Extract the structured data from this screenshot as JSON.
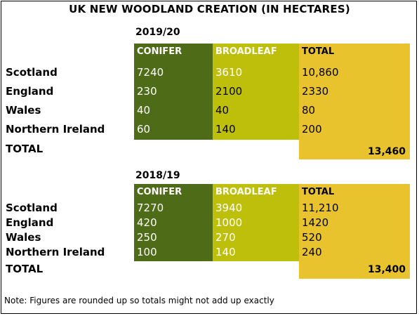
{
  "title": "UK NEW WOODLAND CREATION (IN HECTARES)",
  "colors": {
    "conifer": "#4e6b17",
    "broadleaf": "#bdbf0a",
    "total": "#e9c32e"
  },
  "columns": {
    "conifer": "CONIFER",
    "broadleaf": "BROADLEAF",
    "total": "TOTAL"
  },
  "tables": [
    {
      "year": "2019/20",
      "rows": [
        {
          "label": "Scotland",
          "conifer": "7240",
          "broadleaf": "3610",
          "total": "10,860"
        },
        {
          "label": "England",
          "conifer": "230",
          "broadleaf": "2100",
          "total": "2330"
        },
        {
          "label": "Wales",
          "conifer": "40",
          "broadleaf": "40",
          "total": "80"
        },
        {
          "label": "Northern Ireland",
          "conifer": "60",
          "broadleaf": "140",
          "total": "200"
        }
      ],
      "total_label": "TOTAL",
      "grand_total": "13,460"
    },
    {
      "year": "2018/19",
      "rows": [
        {
          "label": "Scotland",
          "conifer": "7270",
          "broadleaf": "3940",
          "total": "11,210"
        },
        {
          "label": "England",
          "conifer": "420",
          "broadleaf": "1000",
          "total": "1420"
        },
        {
          "label": "Wales",
          "conifer": "250",
          "broadleaf": "270",
          "total": "520"
        },
        {
          "label": "Northern Ireland",
          "conifer": "100",
          "broadleaf": "140",
          "total": "240"
        }
      ],
      "total_label": "TOTAL",
      "grand_total": "13,400"
    }
  ],
  "note": "Note: Figures are rounded up so totals might not add up exactly"
}
